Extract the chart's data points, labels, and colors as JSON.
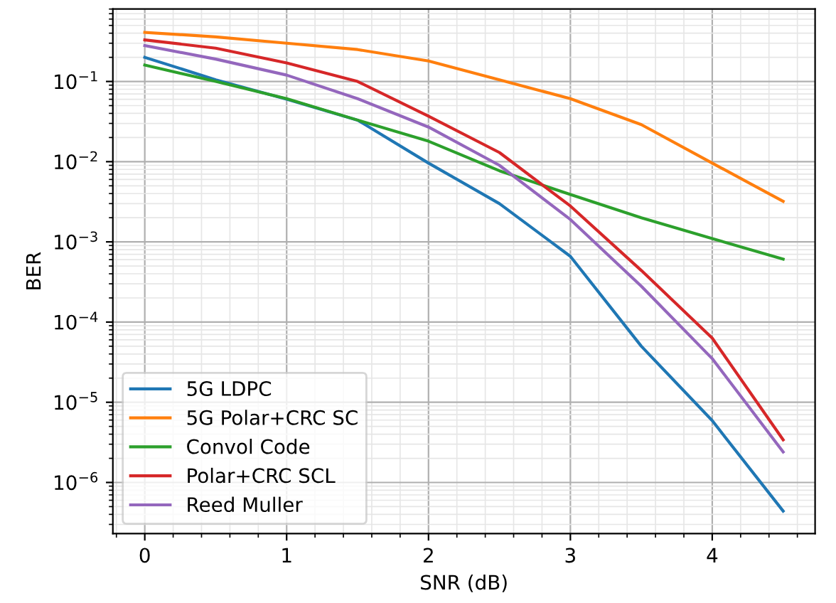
{
  "chart_data": {
    "type": "line",
    "xlabel": "SNR (dB)",
    "ylabel": "BER",
    "x": [
      0,
      0.5,
      1,
      1.5,
      2,
      2.5,
      3,
      3.5,
      4,
      4.5
    ],
    "series": [
      {
        "name": "5G LDPC",
        "color": "#1f77b4",
        "values": [
          0.2,
          0.105,
          0.06,
          0.033,
          0.0096,
          0.003,
          0.00066,
          5e-05,
          5.9e-06,
          4.4e-07
        ]
      },
      {
        "name": "5G Polar+CRC SC",
        "color": "#ff7f0e",
        "values": [
          0.41,
          0.36,
          0.3,
          0.25,
          0.18,
          0.105,
          0.061,
          0.029,
          0.0096,
          0.0032
        ]
      },
      {
        "name": "Convol Code",
        "color": "#2ca02c",
        "values": [
          0.16,
          0.1,
          0.061,
          0.033,
          0.018,
          0.0077,
          0.0039,
          0.002,
          0.0011,
          0.00061
        ]
      },
      {
        "name": "Polar+CRC SCL",
        "color": "#d62728",
        "values": [
          0.33,
          0.26,
          0.17,
          0.1,
          0.037,
          0.013,
          0.0028,
          0.00044,
          6.3e-05,
          3.4e-06
        ]
      },
      {
        "name": "Reed Muller",
        "color": "#9467bd",
        "values": [
          0.28,
          0.19,
          0.12,
          0.061,
          0.027,
          0.009,
          0.0019,
          0.00028,
          3.5e-05,
          2.4e-06
        ]
      }
    ],
    "log": "y",
    "xlim": [
      -0.225,
      4.725
    ],
    "ylim": [
      2.3e-07,
      0.8
    ],
    "xticks": [
      0,
      1,
      2,
      3,
      4
    ],
    "yticks": [
      {
        "value": 1e-06,
        "label": "10$^{−6}$"
      },
      {
        "value": 1e-05,
        "label": "10$^{−5}$"
      },
      {
        "value": 0.0001,
        "label": "10$^{−4}$"
      },
      {
        "value": 0.001,
        "label": "10$^{−3}$"
      },
      {
        "value": 0.01,
        "label": "10$^{−2}$"
      },
      {
        "value": 0.1,
        "label": "10$^{−1}$"
      }
    ],
    "grid": true,
    "legend": "bottom left",
    "marker": "none",
    "line_style": "solid"
  }
}
